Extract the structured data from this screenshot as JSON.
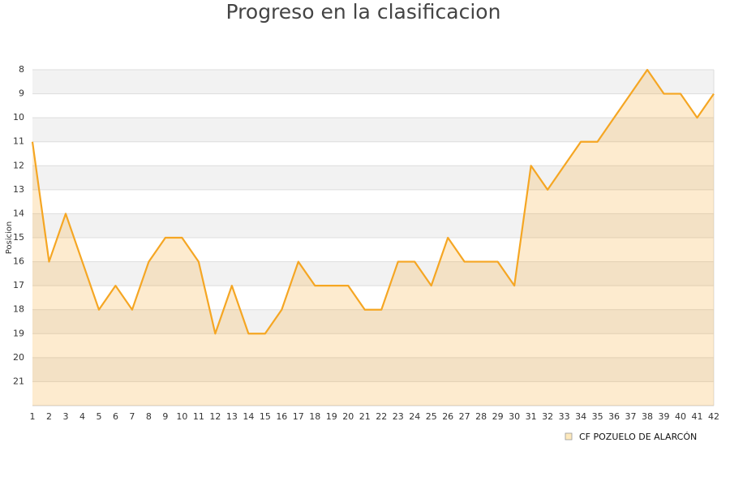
{
  "chart_data": {
    "type": "area",
    "title": "Progreso en la clasificacion",
    "y_label": "Posicion",
    "x": [
      1,
      2,
      3,
      4,
      5,
      6,
      7,
      8,
      9,
      10,
      11,
      12,
      13,
      14,
      15,
      16,
      17,
      18,
      19,
      20,
      21,
      22,
      23,
      24,
      25,
      26,
      27,
      28,
      29,
      30,
      31,
      32,
      33,
      34,
      35,
      36,
      37,
      38,
      39,
      40,
      41,
      42
    ],
    "series": [
      {
        "name": "CF POZUELO DE ALARCÓN",
        "color": "#f5a623",
        "values": [
          11,
          16,
          14,
          16,
          18,
          17,
          18,
          16,
          15,
          15,
          16,
          19,
          17,
          19,
          19,
          18,
          16,
          17,
          17,
          17,
          18,
          18,
          16,
          16,
          17,
          15,
          16,
          16,
          16,
          17,
          12,
          13,
          12,
          11,
          11,
          10,
          9,
          8,
          9,
          9,
          10,
          9
        ]
      }
    ],
    "xlim": [
      1,
      42
    ],
    "ylim": [
      22,
      8
    ],
    "yticks": [
      8,
      9,
      10,
      11,
      12,
      13,
      14,
      15,
      16,
      17,
      18,
      19,
      20,
      21
    ],
    "grid": true
  }
}
